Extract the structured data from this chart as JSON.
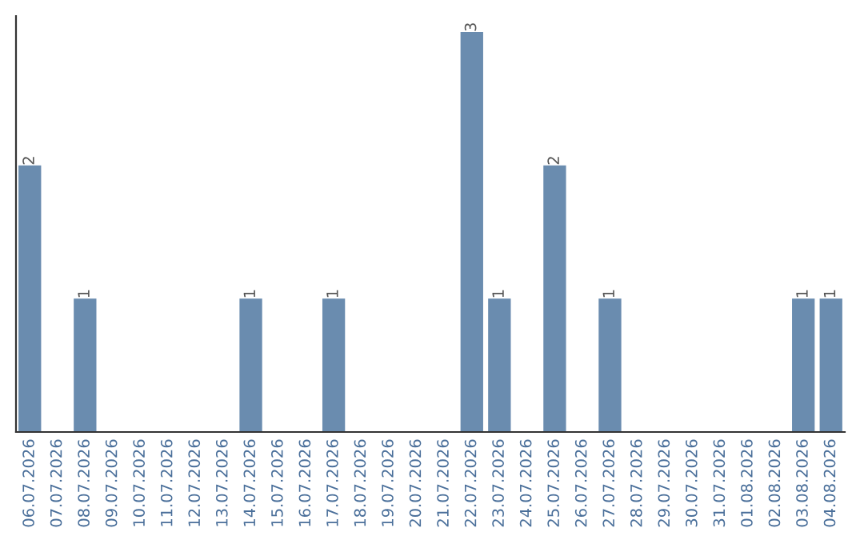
{
  "chart_data": {
    "type": "bar",
    "categories": [
      "06.07.2026",
      "07.07.2026",
      "08.07.2026",
      "09.07.2026",
      "10.07.2026",
      "11.07.2026",
      "12.07.2026",
      "13.07.2026",
      "14.07.2026",
      "15.07.2026",
      "16.07.2026",
      "17.07.2026",
      "18.07.2026",
      "19.07.2026",
      "20.07.2026",
      "21.07.2026",
      "22.07.2026",
      "23.07.2026",
      "24.07.2026",
      "25.07.2026",
      "26.07.2026",
      "27.07.2026",
      "28.07.2026",
      "29.07.2026",
      "30.07.2026",
      "31.07.2026",
      "01.08.2026",
      "02.08.2026",
      "03.08.2026",
      "04.08.2026"
    ],
    "values": [
      2,
      0,
      1,
      0,
      0,
      0,
      0,
      0,
      1,
      0,
      0,
      1,
      0,
      0,
      0,
      0,
      3,
      1,
      0,
      2,
      0,
      1,
      0,
      0,
      0,
      0,
      0,
      0,
      1,
      1
    ],
    "value_labels": [
      "2",
      null,
      "1",
      null,
      null,
      null,
      null,
      null,
      "1",
      null,
      null,
      "1",
      null,
      null,
      null,
      null,
      "3",
      "1",
      null,
      "2",
      null,
      "1",
      null,
      null,
      null,
      null,
      null,
      null,
      "1",
      "1"
    ],
    "color": "#6a8caf",
    "tick_labels": "x",
    "grid": false
  }
}
